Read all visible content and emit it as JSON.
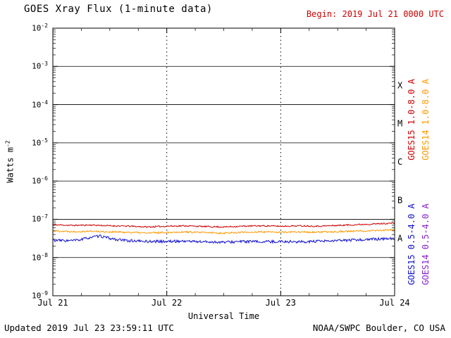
{
  "title": "GOES Xray Flux (1-minute data)",
  "begin_label": "Begin: 2019 Jul 21 0000 UTC",
  "footer": {
    "updated": "Updated 2019 Jul 23 23:59:11 UTC",
    "source": "NOAA/SWPC Boulder, CO USA"
  },
  "colors": {
    "begin_text": "#cc0000",
    "axis": "#000000",
    "background": "#ffffff"
  },
  "chart_data": {
    "type": "line",
    "title": "GOES Xray Flux (1-minute data)",
    "xlabel": "Universal Time",
    "ylabel": "Watts m^-2",
    "ylabel_base": "Watts m",
    "ylabel_exp": "-2",
    "y_scale": "log10",
    "y_tick_base": "10",
    "y_tick_exponents": [
      -2,
      -3,
      -4,
      -5,
      -6,
      -7,
      -8,
      -9
    ],
    "ylim_log10": [
      -9,
      -2
    ],
    "x_ticks": [
      "Jul 21",
      "Jul 22",
      "Jul 23",
      "Jul 24"
    ],
    "x_range_hours": [
      0,
      72
    ],
    "grid": {
      "horizontal": "solid",
      "vertical": "dotted",
      "vertical_at_hours": [
        24,
        48
      ]
    },
    "legend_position": "right-rotated",
    "flare_classes": [
      {
        "label": "X",
        "log10_mid": -3.5
      },
      {
        "label": "M",
        "log10_mid": -4.5
      },
      {
        "label": "C",
        "log10_mid": -5.5
      },
      {
        "label": "B",
        "log10_mid": -6.5
      },
      {
        "label": "A",
        "log10_mid": -7.5
      }
    ],
    "series": [
      {
        "name": "GOES15 1.0-8.0 A",
        "color": "#cc0000",
        "seed": 11,
        "noise": 0.018,
        "x_hours": [
          0,
          4,
          8,
          12,
          16,
          20,
          24,
          28,
          32,
          36,
          40,
          44,
          48,
          52,
          56,
          60,
          64,
          68,
          72
        ],
        "log10_flux": [
          -7.14,
          -7.16,
          -7.15,
          -7.17,
          -7.18,
          -7.2,
          -7.18,
          -7.17,
          -7.19,
          -7.2,
          -7.18,
          -7.17,
          -7.18,
          -7.17,
          -7.18,
          -7.16,
          -7.14,
          -7.12,
          -7.1
        ]
      },
      {
        "name": "GOES14 1.0-8.0 A",
        "color": "#ff9900",
        "seed": 22,
        "noise": 0.022,
        "x_hours": [
          0,
          4,
          8,
          12,
          16,
          20,
          24,
          28,
          32,
          36,
          40,
          44,
          48,
          52,
          56,
          60,
          64,
          68,
          72
        ],
        "log10_flux": [
          -7.3,
          -7.32,
          -7.31,
          -7.33,
          -7.34,
          -7.36,
          -7.34,
          -7.33,
          -7.35,
          -7.36,
          -7.34,
          -7.33,
          -7.34,
          -7.33,
          -7.34,
          -7.32,
          -7.31,
          -7.29,
          -7.28
        ]
      },
      {
        "name": "GOES15 0.5-4.0 A",
        "color": "#1111cc",
        "seed": 33,
        "noise": 0.035,
        "x_hours": [
          0,
          4,
          6,
          8,
          10,
          12,
          14,
          16,
          20,
          24,
          28,
          32,
          36,
          40,
          44,
          48,
          52,
          56,
          60,
          64,
          68,
          72
        ],
        "log10_flux": [
          -7.55,
          -7.56,
          -7.53,
          -7.47,
          -7.44,
          -7.5,
          -7.54,
          -7.56,
          -7.58,
          -7.58,
          -7.57,
          -7.59,
          -7.6,
          -7.58,
          -7.59,
          -7.58,
          -7.59,
          -7.58,
          -7.56,
          -7.54,
          -7.52,
          -7.5
        ]
      },
      {
        "name": "GOES14 0.5-4.0 A",
        "color": "#8822cc",
        "seed": 44,
        "noise": 0.03,
        "x_hours": [],
        "log10_flux": []
      }
    ]
  }
}
